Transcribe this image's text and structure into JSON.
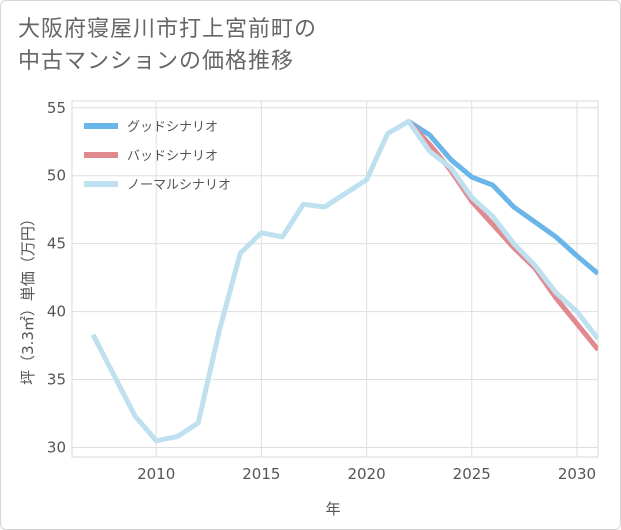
{
  "chart_data": {
    "type": "line",
    "title_lines": [
      "大阪府寝屋川市打上宮前町の",
      "中古マンションの価格推移"
    ],
    "xlabel": "年",
    "ylabel": "坪（3.3㎡）単価（万円）",
    "xlim": [
      2006,
      2031
    ],
    "ylim": [
      29.3,
      55.5
    ],
    "xticks": [
      2010,
      2015,
      2020,
      2025,
      2030
    ],
    "yticks": [
      30,
      35,
      40,
      45,
      50,
      55
    ],
    "grid": true,
    "legend_position": "top-left",
    "series": [
      {
        "name": "グッドシナリオ",
        "color": "#6bb6e9",
        "x": [
          2022,
          2023,
          2024,
          2025,
          2026,
          2027,
          2028,
          2029,
          2030,
          2031
        ],
        "y": [
          54.0,
          53.0,
          51.2,
          49.9,
          49.3,
          47.7,
          46.6,
          45.5,
          44.1,
          42.8
        ]
      },
      {
        "name": "バッドシナリオ",
        "color": "#e0898f",
        "x": [
          2022,
          2023,
          2024,
          2025,
          2026,
          2027,
          2028,
          2029,
          2030,
          2031
        ],
        "y": [
          54.0,
          52.3,
          50.4,
          48.1,
          46.4,
          44.7,
          43.2,
          41.0,
          39.1,
          37.2
        ]
      },
      {
        "name": "ノーマルシナリオ",
        "color": "#bfe0ef",
        "x": [
          2007,
          2008,
          2009,
          2010,
          2011,
          2012,
          2013,
          2014,
          2015,
          2016,
          2017,
          2018,
          2019,
          2020,
          2021,
          2022,
          2023,
          2024,
          2025,
          2026,
          2027,
          2028,
          2029,
          2030,
          2031
        ],
        "y": [
          38.3,
          35.3,
          32.3,
          30.5,
          30.8,
          31.8,
          38.6,
          44.3,
          45.8,
          45.5,
          47.9,
          47.7,
          48.7,
          49.7,
          53.1,
          54.0,
          51.8,
          50.6,
          48.4,
          47.0,
          45.0,
          43.4,
          41.4,
          40.0,
          38.0
        ]
      }
    ]
  }
}
